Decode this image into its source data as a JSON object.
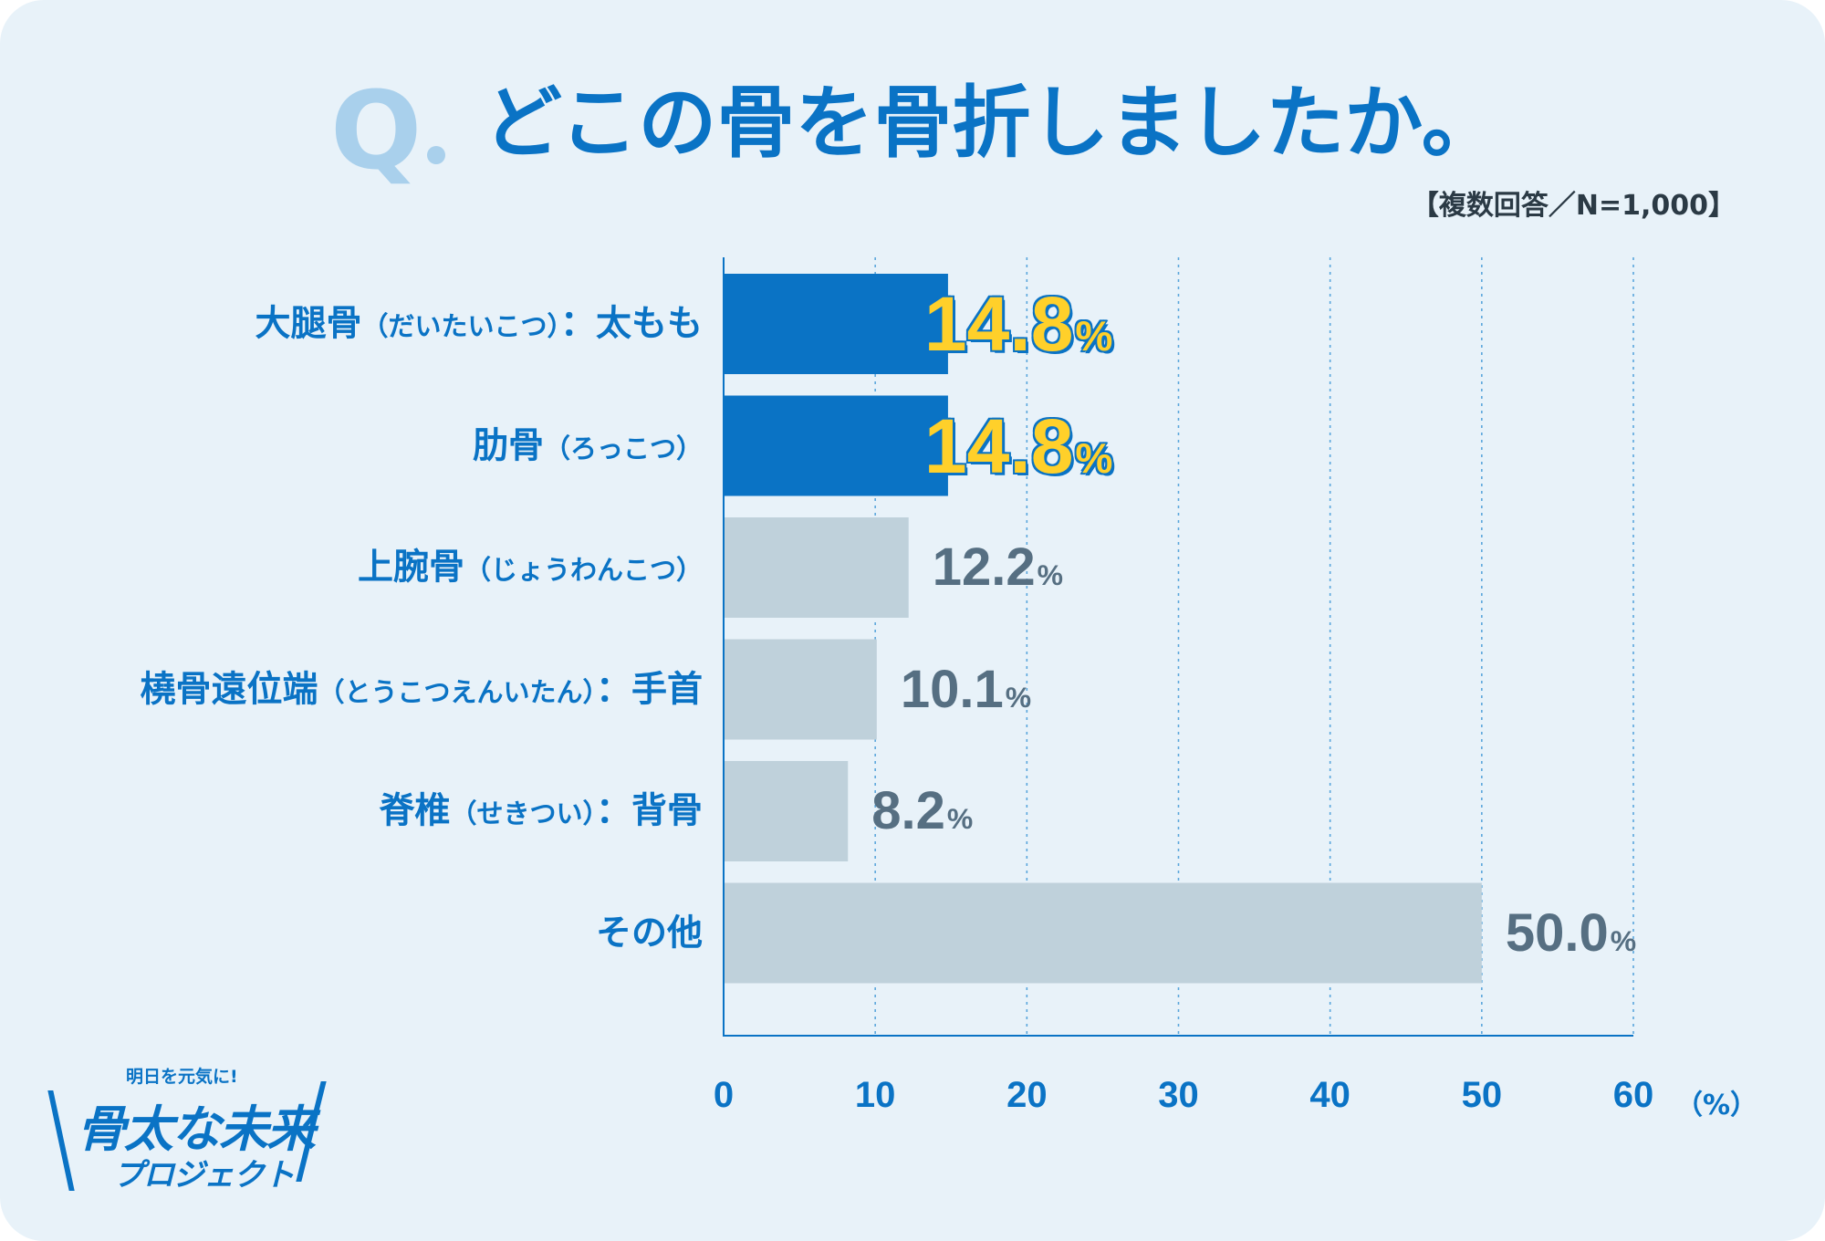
{
  "header": {
    "q_mark": "Q",
    "title": "どこの骨を骨折しましたか。",
    "note": "【複数回答／N=1,000】"
  },
  "colors": {
    "background": "#e8f2f9",
    "accent": "#0a73c5",
    "highlight_bar": "#0a73c5",
    "other_bar": "#bfd1db",
    "highlight_text": "#ffd02a",
    "other_text": "#566f82"
  },
  "chart_data": {
    "type": "bar",
    "orientation": "horizontal",
    "categories": [
      {
        "main": "大腿骨",
        "reading": "（だいたいこつ）",
        "suffix": "：太もも"
      },
      {
        "main": "肋骨",
        "reading": "（ろっこつ）",
        "suffix": ""
      },
      {
        "main": "上腕骨",
        "reading": "（じょうわんこつ）",
        "suffix": ""
      },
      {
        "main": "橈骨遠位端",
        "reading": "（とうこつえんいたん）",
        "suffix": "：手首"
      },
      {
        "main": "脊椎",
        "reading": "（せきつい）",
        "suffix": "：背骨"
      },
      {
        "main": "その他",
        "reading": "",
        "suffix": ""
      }
    ],
    "values": [
      14.8,
      14.8,
      12.2,
      10.1,
      8.2,
      50.0
    ],
    "value_labels": [
      "14.8",
      "14.8",
      "12.2",
      "10.1",
      "8.2",
      "50.0"
    ],
    "value_unit": "%",
    "highlighted": [
      true,
      true,
      false,
      false,
      false,
      false
    ],
    "xlim": [
      0,
      60
    ],
    "x_ticks": [
      "0",
      "10",
      "20",
      "30",
      "40",
      "50",
      "60"
    ],
    "x_unit": "（%）",
    "grid": "vertical dotted"
  },
  "logo": {
    "tagline": "明日を元気に!",
    "main": "骨太な未来",
    "sub": "プロジェクト"
  }
}
